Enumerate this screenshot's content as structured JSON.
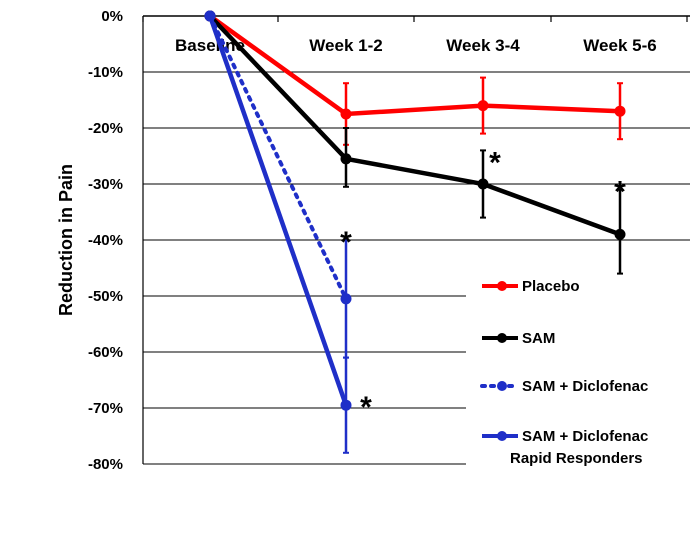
{
  "chart_data": {
    "type": "line",
    "title": "",
    "xlabel": "",
    "ylabel": "Reduction in Pain",
    "categories": [
      "Baseline",
      "Week 1-2",
      "Week 3-4",
      "Week 5-6"
    ],
    "ylim": [
      -80,
      0
    ],
    "yticks": [
      0,
      -10,
      -20,
      -30,
      -40,
      -50,
      -60,
      -70,
      -80
    ],
    "ytick_labels": [
      "0%",
      "-10%",
      "-20%",
      "-30%",
      "-40%",
      "-50%",
      "-60%",
      "-70%",
      "-80%"
    ],
    "grid": true,
    "legend_position": "right",
    "series": [
      {
        "name": "Placebo",
        "color": "#ff0000",
        "style": "solid",
        "x": [
          "Baseline",
          "Week 1-2",
          "Week 3-4",
          "Week 5-6"
        ],
        "values": [
          0,
          -17.5,
          -16,
          -17
        ],
        "err_low": [
          null,
          -23,
          -21,
          -22
        ],
        "err_high": [
          null,
          -12,
          -11,
          -12
        ],
        "significant": [
          false,
          false,
          false,
          false
        ]
      },
      {
        "name": "SAM",
        "color": "#000000",
        "style": "solid",
        "x": [
          "Baseline",
          "Week 1-2",
          "Week 3-4",
          "Week 5-6"
        ],
        "values": [
          0,
          -25.5,
          -30,
          -39
        ],
        "err_low": [
          null,
          -30.5,
          -36,
          -46
        ],
        "err_high": [
          null,
          -20,
          -24,
          -31
        ],
        "significant": [
          false,
          false,
          true,
          true
        ]
      },
      {
        "name": "SAM + Diclofenac",
        "color": "#1f2fc8",
        "style": "dotted",
        "x": [
          "Baseline",
          "Week 1-2"
        ],
        "values": [
          0,
          -50.5
        ],
        "err_low": [
          null,
          -61
        ],
        "err_high": [
          null,
          -40
        ],
        "significant": [
          false,
          true
        ]
      },
      {
        "name": "SAM + Diclofenac Rapid Responders",
        "name_lines": [
          "SAM + Diclofenac",
          "Rapid Responders"
        ],
        "color": "#1f2fc8",
        "style": "solid",
        "x": [
          "Baseline",
          "Week 1-2"
        ],
        "values": [
          0,
          -69.5
        ],
        "err_low": [
          null,
          -78
        ],
        "err_high": [
          null,
          -61
        ],
        "significant": [
          false,
          true
        ]
      }
    ],
    "significance_marker": "*"
  }
}
